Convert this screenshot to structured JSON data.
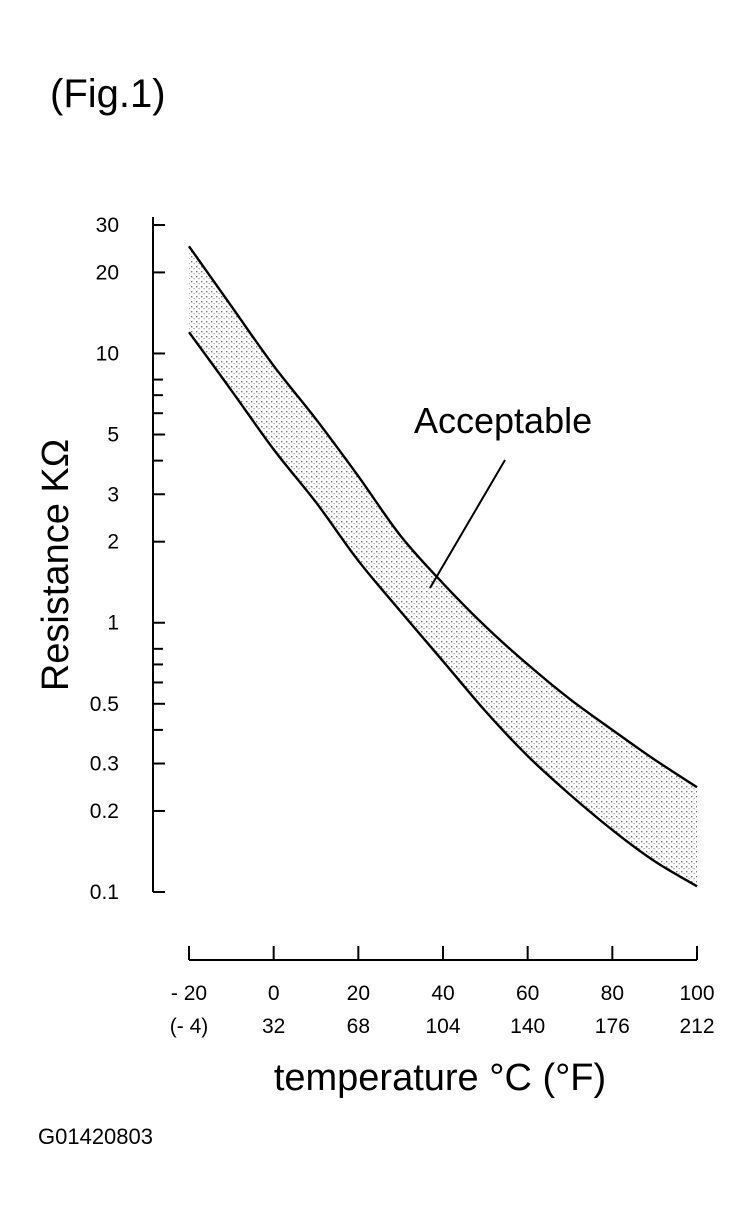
{
  "figure_label": "(Fig.1)",
  "document_code": "G01420803",
  "chart_data": {
    "type": "area",
    "title": "",
    "xlabel": "temperature °C (°F)",
    "ylabel": "Resistance KΩ",
    "yscale": "log",
    "ylim": [
      0.1,
      30
    ],
    "xlim": [
      -20,
      100
    ],
    "y_ticks": [
      {
        "value": 30,
        "label": "30"
      },
      {
        "value": 20,
        "label": "20"
      },
      {
        "value": 10,
        "label": "10"
      },
      {
        "value": 5,
        "label": "5"
      },
      {
        "value": 3,
        "label": "3"
      },
      {
        "value": 2,
        "label": "2"
      },
      {
        "value": 1,
        "label": "1"
      },
      {
        "value": 0.5,
        "label": "0.5"
      },
      {
        "value": 0.3,
        "label": "0.3"
      },
      {
        "value": 0.2,
        "label": "0.2"
      },
      {
        "value": 0.1,
        "label": "0.1"
      }
    ],
    "y_minor_ticks": [
      8,
      7,
      6,
      4,
      0.8,
      0.7,
      0.6,
      0.4
    ],
    "x_ticks": [
      {
        "value": -20,
        "label_c": "- 20",
        "label_f": "(- 4)"
      },
      {
        "value": 0,
        "label_c": "0",
        "label_f": "32"
      },
      {
        "value": 20,
        "label_c": "20",
        "label_f": "68"
      },
      {
        "value": 40,
        "label_c": "40",
        "label_f": "104"
      },
      {
        "value": 60,
        "label_c": "60",
        "label_f": "140"
      },
      {
        "value": 80,
        "label_c": "80",
        "label_f": "176"
      },
      {
        "value": 100,
        "label_c": "100",
        "label_f": "212"
      }
    ],
    "band": {
      "label": "Acceptable",
      "upper": {
        "x": [
          -20,
          -10,
          0,
          10,
          20,
          30,
          40,
          50,
          60,
          70,
          80,
          90,
          100
        ],
        "y": [
          25,
          15,
          9,
          5.7,
          3.5,
          2.1,
          1.4,
          0.97,
          0.7,
          0.52,
          0.4,
          0.31,
          0.245
        ]
      },
      "lower": {
        "x": [
          -20,
          -10,
          0,
          10,
          20,
          30,
          40,
          50,
          60,
          70,
          80,
          90,
          100
        ],
        "y": [
          12,
          7.3,
          4.4,
          2.8,
          1.7,
          1.1,
          0.72,
          0.47,
          0.32,
          0.23,
          0.17,
          0.13,
          0.105
        ]
      }
    },
    "grid": false,
    "legend": "none"
  }
}
